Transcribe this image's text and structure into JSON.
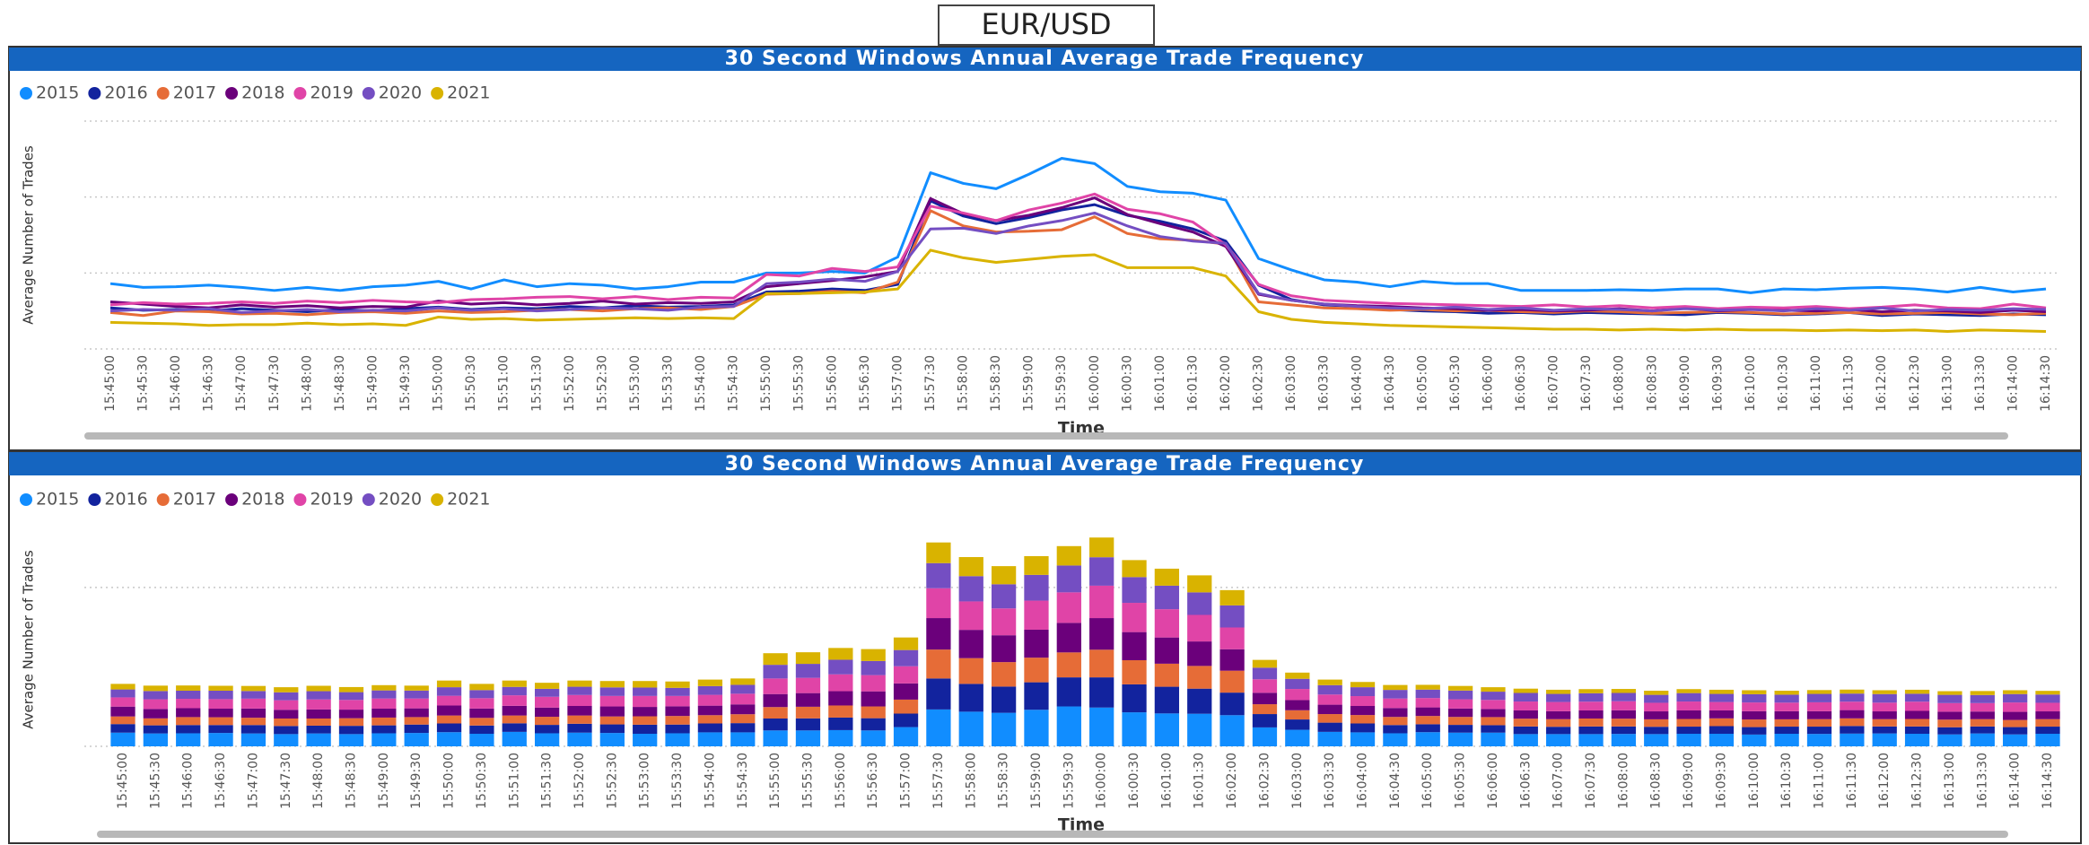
{
  "header": {
    "title": "EUR/USD"
  },
  "chart_data": [
    {
      "type": "line",
      "title": "30 Second Windows Annual Average Trade Frequency",
      "y_label": "Average Number of Trades",
      "x_label": "Time",
      "categories": [
        "15:45:00",
        "15:45:30",
        "15:46:00",
        "15:46:30",
        "15:47:00",
        "15:47:30",
        "15:48:00",
        "15:48:30",
        "15:49:00",
        "15:49:30",
        "15:50:00",
        "15:50:30",
        "15:51:00",
        "15:51:30",
        "15:52:00",
        "15:52:30",
        "15:53:00",
        "15:53:30",
        "15:54:00",
        "15:54:30",
        "15:55:00",
        "15:55:30",
        "15:56:00",
        "15:56:30",
        "15:57:00",
        "15:57:30",
        "15:58:00",
        "15:58:30",
        "15:59:00",
        "15:59:30",
        "16:00:00",
        "16:00:30",
        "16:01:00",
        "16:01:30",
        "16:02:00",
        "16:02:30",
        "16:03:00",
        "16:03:30",
        "16:04:00",
        "16:04:30",
        "16:05:00",
        "16:05:30",
        "16:06:00",
        "16:06:30",
        "16:07:00",
        "16:07:30",
        "16:08:00",
        "16:08:30",
        "16:09:00",
        "16:09:30",
        "16:10:00",
        "16:10:30",
        "16:11:00",
        "16:11:30",
        "16:12:00",
        "16:12:30",
        "16:13:00",
        "16:13:30",
        "16:14:00",
        "16:14:30"
      ],
      "series": [
        {
          "name": "2015",
          "color": "#118DFF",
          "values": [
            8.6,
            8.1,
            8.2,
            8.4,
            8.1,
            7.7,
            8.1,
            7.7,
            8.2,
            8.4,
            8.9,
            7.9,
            9.1,
            8.2,
            8.6,
            8.4,
            7.9,
            8.2,
            8.8,
            8.8,
            10.0,
            10.0,
            10.2,
            10.0,
            12.1,
            23.2,
            21.8,
            21.1,
            23.0,
            25.1,
            24.4,
            21.4,
            20.7,
            20.5,
            19.6,
            11.9,
            10.4,
            9.1,
            8.8,
            8.2,
            8.9,
            8.6,
            8.6,
            7.7,
            7.7,
            7.7,
            7.8,
            7.7,
            7.9,
            7.9,
            7.4,
            7.9,
            7.8,
            8.0,
            8.1,
            7.9,
            7.5,
            8.1,
            7.5,
            7.9
          ]
        },
        {
          "name": "2016",
          "color": "#12239E",
          "values": [
            5.4,
            5.1,
            5.2,
            5.0,
            5.3,
            5.1,
            4.9,
            5.2,
            5.0,
            5.3,
            5.5,
            5.2,
            5.4,
            5.3,
            5.6,
            5.4,
            5.7,
            5.5,
            5.6,
            5.8,
            7.5,
            7.6,
            7.9,
            7.7,
            8.5,
            19.5,
            17.5,
            16.5,
            17.3,
            18.3,
            19.0,
            17.6,
            16.8,
            15.8,
            14.2,
            8.4,
            6.5,
            5.8,
            5.6,
            5.2,
            5.0,
            4.9,
            4.7,
            4.8,
            4.6,
            4.8,
            4.7,
            4.6,
            4.5,
            4.8,
            4.7,
            4.5,
            4.6,
            4.8,
            4.4,
            4.6,
            4.5,
            4.4,
            4.6,
            4.5
          ]
        },
        {
          "name": "2017",
          "color": "#E66C37",
          "values": [
            4.8,
            4.4,
            5.0,
            4.9,
            4.6,
            4.7,
            4.5,
            4.8,
            4.9,
            4.7,
            5.0,
            4.8,
            4.9,
            5.1,
            5.2,
            5.0,
            5.3,
            5.4,
            5.2,
            5.6,
            7.2,
            7.3,
            7.6,
            7.4,
            8.8,
            18.2,
            16.2,
            15.4,
            15.5,
            15.7,
            17.4,
            15.2,
            14.5,
            14.3,
            13.8,
            6.2,
            5.8,
            5.4,
            5.3,
            5.1,
            5.2,
            5.0,
            5.1,
            4.9,
            4.8,
            5.0,
            4.9,
            4.7,
            4.8,
            4.9,
            4.8,
            4.6,
            4.7,
            4.8,
            4.6,
            4.7,
            4.8,
            4.6,
            4.5,
            4.7
          ]
        },
        {
          "name": "2018",
          "color": "#6B007B",
          "values": [
            6.2,
            5.9,
            5.6,
            5.4,
            5.8,
            5.5,
            5.7,
            5.4,
            5.6,
            5.5,
            6.3,
            5.9,
            6.1,
            5.8,
            6.0,
            6.3,
            5.9,
            6.1,
            6.0,
            6.2,
            8.2,
            8.6,
            9.0,
            9.5,
            10.2,
            19.8,
            17.8,
            16.9,
            17.6,
            18.6,
            19.9,
            17.7,
            16.5,
            15.4,
            13.5,
            7.2,
            6.4,
            5.9,
            5.7,
            5.6,
            5.4,
            5.3,
            5.1,
            5.2,
            5.0,
            5.1,
            5.3,
            5.0,
            5.4,
            5.0,
            5.2,
            5.1,
            5.0,
            5.2,
            4.9,
            5.1,
            5.0,
            4.8,
            5.1,
            4.9
          ]
        },
        {
          "name": "2019",
          "color": "#E044A7",
          "values": [
            5.8,
            6.1,
            5.9,
            6.0,
            6.2,
            6.0,
            6.3,
            6.1,
            6.4,
            6.2,
            6.1,
            6.5,
            6.6,
            6.8,
            6.9,
            6.6,
            6.9,
            6.5,
            6.8,
            6.7,
            9.8,
            9.6,
            10.6,
            10.2,
            10.8,
            18.8,
            17.9,
            16.9,
            18.3,
            19.2,
            20.4,
            18.4,
            17.8,
            16.7,
            13.7,
            8.5,
            7.0,
            6.4,
            6.2,
            6.0,
            5.9,
            5.8,
            5.7,
            5.6,
            5.8,
            5.5,
            5.7,
            5.4,
            5.6,
            5.3,
            5.5,
            5.4,
            5.6,
            5.3,
            5.5,
            5.8,
            5.4,
            5.3,
            5.9,
            5.4
          ]
        },
        {
          "name": "2020",
          "color": "#744EC2",
          "values": [
            5.0,
            5.2,
            5.1,
            5.3,
            4.8,
            5.0,
            5.2,
            4.9,
            5.1,
            5.0,
            5.4,
            5.1,
            5.3,
            5.0,
            5.2,
            5.4,
            5.3,
            5.1,
            5.5,
            5.6,
            8.6,
            8.8,
            9.2,
            8.9,
            10.2,
            15.8,
            15.9,
            15.2,
            16.2,
            16.9,
            17.9,
            16.2,
            14.8,
            14.2,
            13.9,
            7.3,
            6.4,
            5.9,
            5.6,
            5.4,
            5.3,
            5.5,
            5.2,
            5.4,
            5.1,
            5.3,
            5.2,
            5.0,
            5.3,
            5.1,
            5.2,
            5.0,
            5.3,
            5.1,
            5.4,
            5.0,
            5.2,
            5.1,
            5.3,
            5.2
          ]
        },
        {
          "name": "2021",
          "color": "#D9B300",
          "values": [
            3.5,
            3.4,
            3.3,
            3.1,
            3.2,
            3.2,
            3.4,
            3.2,
            3.3,
            3.1,
            4.2,
            3.9,
            4.0,
            3.8,
            3.9,
            4.0,
            4.1,
            4.0,
            4.1,
            4.0,
            7.3,
            7.3,
            7.4,
            7.5,
            7.9,
            13.0,
            12.0,
            11.4,
            11.8,
            12.2,
            12.4,
            10.7,
            10.7,
            10.7,
            9.6,
            4.9,
            3.9,
            3.5,
            3.3,
            3.1,
            3.0,
            2.9,
            2.8,
            2.7,
            2.6,
            2.6,
            2.5,
            2.6,
            2.5,
            2.6,
            2.5,
            2.5,
            2.4,
            2.5,
            2.4,
            2.5,
            2.3,
            2.5,
            2.4,
            2.3
          ]
        }
      ],
      "ylim": [
        0,
        30
      ],
      "yticks": [
        0,
        10,
        20,
        30
      ],
      "grid": true,
      "legend": "top-left"
    },
    {
      "type": "stacked_bar",
      "title": "30 Second Windows Annual Average Trade Frequency",
      "y_label": "Average Number of Trades",
      "x_label": "Time",
      "categories": [
        "15:45:00",
        "15:45:30",
        "15:46:00",
        "15:46:30",
        "15:47:00",
        "15:47:30",
        "15:48:00",
        "15:48:30",
        "15:49:00",
        "15:49:30",
        "15:50:00",
        "15:50:30",
        "15:51:00",
        "15:51:30",
        "15:52:00",
        "15:52:30",
        "15:53:00",
        "15:53:30",
        "15:54:00",
        "15:54:30",
        "15:55:00",
        "15:55:30",
        "15:56:00",
        "15:56:30",
        "15:57:00",
        "15:57:30",
        "15:58:00",
        "15:58:30",
        "15:59:00",
        "15:59:30",
        "16:00:00",
        "16:00:30",
        "16:01:00",
        "16:01:30",
        "16:02:00",
        "16:02:30",
        "16:03:00",
        "16:03:30",
        "16:04:00",
        "16:04:30",
        "16:05:00",
        "16:05:30",
        "16:06:00",
        "16:06:30",
        "16:07:00",
        "16:07:30",
        "16:08:00",
        "16:08:30",
        "16:09:00",
        "16:09:30",
        "16:10:00",
        "16:10:30",
        "16:11:00",
        "16:11:30",
        "16:12:00",
        "16:12:30",
        "16:13:00",
        "16:13:30",
        "16:14:00",
        "16:14:30"
      ],
      "series": [
        {
          "name": "2015",
          "color": "#118DFF",
          "values": [
            8.6,
            8.1,
            8.2,
            8.4,
            8.1,
            7.7,
            8.1,
            7.7,
            8.2,
            8.4,
            8.9,
            7.9,
            9.1,
            8.2,
            8.6,
            8.4,
            7.9,
            8.2,
            8.8,
            8.8,
            10.0,
            10.0,
            10.2,
            10.0,
            12.1,
            23.2,
            21.8,
            21.1,
            23.0,
            25.1,
            24.4,
            21.4,
            20.7,
            20.5,
            19.6,
            11.9,
            10.4,
            9.1,
            8.8,
            8.2,
            8.9,
            8.6,
            8.6,
            7.7,
            7.7,
            7.7,
            7.8,
            7.7,
            7.9,
            7.9,
            7.4,
            7.9,
            7.8,
            8.0,
            8.1,
            7.9,
            7.5,
            8.1,
            7.5,
            7.9
          ]
        },
        {
          "name": "2016",
          "color": "#12239E",
          "values": [
            5.4,
            5.1,
            5.2,
            5.0,
            5.3,
            5.1,
            4.9,
            5.2,
            5.0,
            5.3,
            5.5,
            5.2,
            5.4,
            5.3,
            5.6,
            5.4,
            5.7,
            5.5,
            5.6,
            5.8,
            7.5,
            7.6,
            7.9,
            7.7,
            8.5,
            19.5,
            17.5,
            16.5,
            17.3,
            18.3,
            19.0,
            17.6,
            16.8,
            15.8,
            14.2,
            8.4,
            6.5,
            5.8,
            5.6,
            5.2,
            5.0,
            4.9,
            4.7,
            4.8,
            4.6,
            4.8,
            4.7,
            4.6,
            4.5,
            4.8,
            4.7,
            4.5,
            4.6,
            4.8,
            4.4,
            4.6,
            4.5,
            4.4,
            4.6,
            4.5
          ]
        },
        {
          "name": "2017",
          "color": "#E66C37",
          "values": [
            4.8,
            4.4,
            5.0,
            4.9,
            4.6,
            4.7,
            4.5,
            4.8,
            4.9,
            4.7,
            5.0,
            4.8,
            4.9,
            5.1,
            5.2,
            5.0,
            5.3,
            5.4,
            5.2,
            5.6,
            7.2,
            7.3,
            7.6,
            7.4,
            8.8,
            18.2,
            16.2,
            15.4,
            15.5,
            15.7,
            17.4,
            15.2,
            14.5,
            14.3,
            13.8,
            6.2,
            5.8,
            5.4,
            5.3,
            5.1,
            5.2,
            5.0,
            5.1,
            4.9,
            4.8,
            5.0,
            4.9,
            4.7,
            4.8,
            4.9,
            4.8,
            4.6,
            4.7,
            4.8,
            4.6,
            4.7,
            4.8,
            4.6,
            4.5,
            4.7
          ]
        },
        {
          "name": "2018",
          "color": "#6B007B",
          "values": [
            6.2,
            5.9,
            5.6,
            5.4,
            5.8,
            5.5,
            5.7,
            5.4,
            5.6,
            5.5,
            6.3,
            5.9,
            6.1,
            5.8,
            6.0,
            6.3,
            5.9,
            6.1,
            6.0,
            6.2,
            8.2,
            8.6,
            9.0,
            9.5,
            10.2,
            19.8,
            17.8,
            16.9,
            17.6,
            18.6,
            19.9,
            17.7,
            16.5,
            15.4,
            13.5,
            7.2,
            6.4,
            5.9,
            5.7,
            5.6,
            5.4,
            5.3,
            5.1,
            5.2,
            5.0,
            5.1,
            5.3,
            5.0,
            5.4,
            5.0,
            5.2,
            5.1,
            5.0,
            5.2,
            4.9,
            5.1,
            5.0,
            4.8,
            5.1,
            4.9
          ]
        },
        {
          "name": "2019",
          "color": "#E044A7",
          "values": [
            5.8,
            6.1,
            5.9,
            6.0,
            6.2,
            6.0,
            6.3,
            6.1,
            6.4,
            6.2,
            6.1,
            6.5,
            6.6,
            6.8,
            6.9,
            6.6,
            6.9,
            6.5,
            6.8,
            6.7,
            9.8,
            9.6,
            10.6,
            10.2,
            10.8,
            18.8,
            17.9,
            16.9,
            18.3,
            19.2,
            20.4,
            18.4,
            17.8,
            16.7,
            13.7,
            8.5,
            7.0,
            6.4,
            6.2,
            6.0,
            5.9,
            5.8,
            5.7,
            5.6,
            5.8,
            5.5,
            5.7,
            5.4,
            5.6,
            5.3,
            5.5,
            5.4,
            5.6,
            5.3,
            5.5,
            5.8,
            5.4,
            5.3,
            5.9,
            5.4
          ]
        },
        {
          "name": "2020",
          "color": "#744EC2",
          "values": [
            5.0,
            5.2,
            5.1,
            5.3,
            4.8,
            5.0,
            5.2,
            4.9,
            5.1,
            5.0,
            5.4,
            5.1,
            5.3,
            5.0,
            5.2,
            5.4,
            5.3,
            5.1,
            5.5,
            5.6,
            8.6,
            8.8,
            9.2,
            8.9,
            10.2,
            15.8,
            15.9,
            15.2,
            16.2,
            16.9,
            17.9,
            16.2,
            14.8,
            14.2,
            13.9,
            7.3,
            6.4,
            5.9,
            5.6,
            5.4,
            5.3,
            5.5,
            5.2,
            5.4,
            5.1,
            5.3,
            5.2,
            5.0,
            5.3,
            5.1,
            5.2,
            5.0,
            5.3,
            5.1,
            5.4,
            5.0,
            5.2,
            5.1,
            5.3,
            5.2
          ]
        },
        {
          "name": "2021",
          "color": "#D9B300",
          "values": [
            3.5,
            3.4,
            3.3,
            3.1,
            3.2,
            3.2,
            3.4,
            3.2,
            3.3,
            3.1,
            4.2,
            3.9,
            4.0,
            3.8,
            3.9,
            4.0,
            4.1,
            4.0,
            4.1,
            4.0,
            7.3,
            7.3,
            7.4,
            7.5,
            7.9,
            13.0,
            12.0,
            11.4,
            11.8,
            12.2,
            12.4,
            10.7,
            10.7,
            10.7,
            9.6,
            4.9,
            3.9,
            3.5,
            3.3,
            3.1,
            3.0,
            2.9,
            2.8,
            2.7,
            2.6,
            2.6,
            2.5,
            2.6,
            2.5,
            2.6,
            2.5,
            2.5,
            2.4,
            2.5,
            2.4,
            2.5,
            2.3,
            2.5,
            2.4,
            2.3
          ]
        }
      ],
      "ylim": [
        0,
        140
      ],
      "yticks": [
        0,
        100
      ],
      "grid": true,
      "legend": "top-left"
    }
  ]
}
